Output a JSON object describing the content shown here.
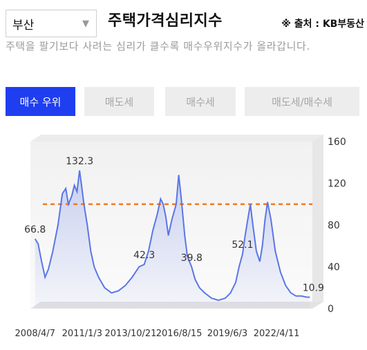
{
  "header": {
    "region": "부산",
    "title": "주택가격심리지수",
    "source": "※ 출처 : KB부동산"
  },
  "description": "주택을 팔기보다 사려는 심리가 클수록 매수우위지수가 올라갑니다.",
  "tabs": [
    {
      "label": "매수 우위",
      "active": true
    },
    {
      "label": "매도세",
      "active": false
    },
    {
      "label": "매수세",
      "active": false
    },
    {
      "label": "매도세/매수세",
      "active": false
    }
  ],
  "colors": {
    "accent": "#1e3ef0",
    "line": "#5a76e6",
    "reference": "#f27a21"
  },
  "chart_data": {
    "type": "area",
    "title": "",
    "xlabel": "",
    "ylabel": "",
    "ylim": [
      0,
      160
    ],
    "yticks": [
      "0",
      "40",
      "80",
      "120",
      "160"
    ],
    "xticks": [
      {
        "x": 2008.27,
        "label": "2008/4/7"
      },
      {
        "x": 2011.0,
        "label": "2011/1/3"
      },
      {
        "x": 2013.81,
        "label": "2013/10/21"
      },
      {
        "x": 2016.62,
        "label": "2016/8/15"
      },
      {
        "x": 2019.42,
        "label": "2019/6/3"
      },
      {
        "x": 2022.27,
        "label": "2022/4/11"
      }
    ],
    "reference_line": 100,
    "data_labels": [
      {
        "x": 2008.27,
        "y": 66.8,
        "text": "66.8"
      },
      {
        "x": 2010.85,
        "y": 132.3,
        "text": "132.3"
      },
      {
        "x": 2014.6,
        "y": 42.3,
        "text": "42.3"
      },
      {
        "x": 2017.35,
        "y": 39.8,
        "text": "39.8"
      },
      {
        "x": 2020.3,
        "y": 52.1,
        "text": "52.1"
      },
      {
        "x": 2024.1,
        "y": 10.9,
        "text": "10.9"
      }
    ],
    "series": [
      {
        "x": [
          2008.27,
          2008.45,
          2008.65,
          2008.85,
          2009.05,
          2009.3,
          2009.6,
          2009.85,
          2010.05,
          2010.2,
          2010.4,
          2010.55,
          2010.7,
          2010.85,
          2010.95,
          2011.1,
          2011.3,
          2011.5,
          2011.7,
          2011.95,
          2012.3,
          2012.7,
          2013.1,
          2013.5,
          2013.9,
          2014.3,
          2014.6,
          2014.85,
          2015.1,
          2015.35,
          2015.55,
          2015.7,
          2015.85,
          2016.0,
          2016.2,
          2016.45,
          2016.6,
          2016.75,
          2016.95,
          2017.1,
          2017.35,
          2017.55,
          2017.8,
          2018.1,
          2018.5,
          2018.9,
          2019.3,
          2019.6,
          2019.9,
          2020.1,
          2020.3,
          2020.45,
          2020.6,
          2020.75,
          2020.9,
          2021.1,
          2021.3,
          2021.45,
          2021.6,
          2021.75,
          2021.95,
          2022.2,
          2022.5,
          2022.8,
          2023.1,
          2023.4,
          2023.7,
          2024.0,
          2024.2
        ],
        "y": [
          66.8,
          62.0,
          45.0,
          30.0,
          38.0,
          55.0,
          80.0,
          110.0,
          115.0,
          100.0,
          108.0,
          118.0,
          112.0,
          132.3,
          120.0,
          100.0,
          80.0,
          55.0,
          40.0,
          30.0,
          20.0,
          15.0,
          17.0,
          22.0,
          30.0,
          40.0,
          42.3,
          55.0,
          75.0,
          90.0,
          105.0,
          100.0,
          88.0,
          70.0,
          85.0,
          100.0,
          128.0,
          105.0,
          70.0,
          50.0,
          39.8,
          28.0,
          20.0,
          15.0,
          10.0,
          8.0,
          10.0,
          15.0,
          25.0,
          40.0,
          52.1,
          70.0,
          85.0,
          100.0,
          80.0,
          55.0,
          45.0,
          60.0,
          85.0,
          102.0,
          85.0,
          55.0,
          35.0,
          22.0,
          15.0,
          12.0,
          12.0,
          11.0,
          10.9
        ]
      }
    ]
  }
}
